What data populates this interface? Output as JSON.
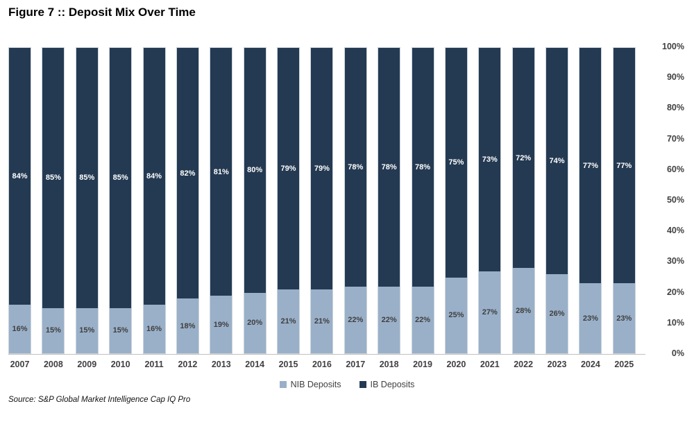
{
  "title": "Figure 7 :: Deposit Mix Over Time",
  "source": "Source: S&P Global Market Intelligence Cap IQ Pro",
  "colors": {
    "nib": "#9ab0c9",
    "ib": "#243a52",
    "label_on_dark": "#ffffff",
    "label_on_light": "#3f3f3f",
    "axis_text": "#404040",
    "baseline": "#bfbfbf"
  },
  "legend": [
    {
      "label": "NIB Deposits",
      "color": "#9ab0c9"
    },
    {
      "label": "IB Deposits",
      "color": "#243a52"
    }
  ],
  "chart_data": {
    "type": "bar",
    "stacked": true,
    "percent": true,
    "title": "Figure 7 :: Deposit Mix Over Time",
    "categories": [
      "2007",
      "2008",
      "2009",
      "2010",
      "2011",
      "2012",
      "2013",
      "2014",
      "2015",
      "2016",
      "2017",
      "2018",
      "2019",
      "2020",
      "2021",
      "2022",
      "2023",
      "2024",
      "2025"
    ],
    "series": [
      {
        "name": "NIB Deposits",
        "color": "#9ab0c9",
        "values": [
          16,
          15,
          15,
          15,
          16,
          18,
          19,
          20,
          21,
          21,
          22,
          22,
          22,
          25,
          27,
          28,
          26,
          23,
          23
        ]
      },
      {
        "name": "IB Deposits",
        "color": "#243a52",
        "values": [
          84,
          85,
          85,
          85,
          84,
          82,
          81,
          80,
          79,
          79,
          78,
          78,
          78,
          75,
          73,
          72,
          74,
          77,
          77
        ]
      }
    ],
    "value_labels": true,
    "value_label_format": "{v}%",
    "xlabel": "",
    "ylabel": "",
    "ylim": [
      0,
      100
    ],
    "y_ticks": [
      "0%",
      "10%",
      "20%",
      "30%",
      "40%",
      "50%",
      "60%",
      "70%",
      "80%",
      "90%",
      "100%"
    ],
    "axis_side": "right",
    "grid": false,
    "legend_position": "bottom"
  }
}
